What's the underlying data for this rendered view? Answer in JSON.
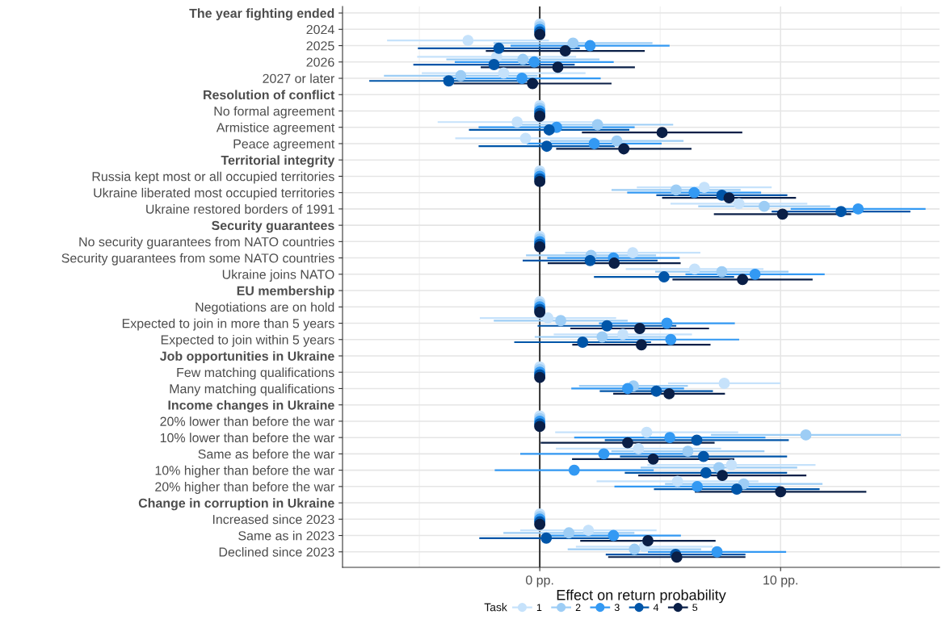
{
  "chart_data": {
    "type": "scatter",
    "orientation": "horizontal",
    "xlabel": "Effect on return probability",
    "legend_title": "Task",
    "legend": "bottom",
    "marker": "circle",
    "grid": true,
    "categories": [
      "The year fighting ended",
      "2024",
      "2025",
      "2026",
      "2027 or later",
      "Resolution of conflict",
      "No formal agreement",
      "Armistice agreement",
      "Peace agreement",
      "Territorial integrity",
      "Russia kept most or all occupied territories",
      "Ukraine liberated most occupied territories",
      "Ukraine restored borders of 1991",
      "Security guarantees",
      "No security guarantees from NATO countries",
      "Security guarantees from some NATO countries",
      "Ukraine joins NATO",
      "EU membership",
      "Negotiations are on hold",
      "Expected to join in more than 5 years",
      "Expected to join within 5 years",
      "Job opportunities in Ukraine",
      "Few matching qualifications",
      "Many matching qualifications",
      "Income changes in Ukraine",
      "20% lower than before the war",
      "10% lower than before the war",
      "Same as before the war",
      "10% higher than before the war",
      "20% higher than before the war",
      "Change in corruption in Ukraine",
      "Increased since 2023",
      "Same as in 2023",
      "Declined since 2023"
    ],
    "xlim": [
      -8.19,
      16.6
    ],
    "xticks": [
      {
        "value": 0,
        "label": "0 pp."
      },
      {
        "value": 10,
        "label": "10 pp."
      }
    ],
    "ref_lines": [
      {
        "axis": "x",
        "value": 0,
        "color": "#222222"
      }
    ],
    "series": [
      {
        "name": "1",
        "color": "#c6e2fb",
        "values": [
          null,
          0,
          -2.98,
          -1.79,
          -1.5,
          null,
          0,
          -0.94,
          -0.59,
          null,
          0,
          6.83,
          8.27,
          null,
          0,
          3.86,
          6.43,
          null,
          0,
          0.34,
          3.45,
          null,
          0,
          7.66,
          null,
          0,
          4.44,
          4.1,
          7.96,
          5.72,
          null,
          0,
          2.02,
          4.34
        ],
        "errors": [
          null,
          null,
          3.36,
          3.3,
          3.4,
          null,
          null,
          3.3,
          2.92,
          null,
          null,
          2.8,
          2.84,
          null,
          null,
          2.81,
          2.86,
          null,
          null,
          2.83,
          2.87,
          null,
          null,
          2.33,
          null,
          null,
          3.8,
          3.43,
          3.49,
          3.36,
          null,
          null,
          2.83,
          2.84
        ]
      },
      {
        "name": "2",
        "color": "#9dcdf5",
        "values": [
          null,
          0,
          1.38,
          -0.7,
          -3.28,
          null,
          0,
          2.4,
          3.2,
          null,
          0,
          5.66,
          9.32,
          null,
          0,
          2.13,
          7.56,
          null,
          0,
          0.87,
          2.59,
          null,
          0,
          3.89,
          null,
          0,
          11.05,
          6.15,
          7.44,
          8.47,
          null,
          0,
          1.21,
          3.93
        ],
        "errors": [
          null,
          null,
          3.3,
          3.18,
          3.19,
          null,
          null,
          3.14,
          2.77,
          null,
          null,
          2.68,
          2.74,
          null,
          null,
          2.7,
          2.77,
          null,
          null,
          2.78,
          2.8,
          null,
          null,
          2.26,
          null,
          null,
          3.94,
          3.18,
          3.25,
          3.27,
          null,
          null,
          2.72,
          2.77
        ]
      },
      {
        "name": "3",
        "color": "#3399f3",
        "values": [
          null,
          0,
          2.09,
          -0.23,
          -0.74,
          null,
          0,
          0.7,
          2.26,
          null,
          0,
          6.41,
          13.22,
          null,
          0,
          3.06,
          8.94,
          null,
          0,
          5.28,
          5.44,
          null,
          0,
          3.65,
          null,
          0,
          5.4,
          2.66,
          1.43,
          6.54,
          null,
          0,
          3.06,
          7.36
        ],
        "errors": [
          null,
          null,
          3.3,
          3.3,
          3.27,
          null,
          null,
          3.24,
          2.8,
          null,
          null,
          2.78,
          2.8,
          null,
          null,
          2.75,
          2.89,
          null,
          null,
          2.82,
          2.84,
          null,
          null,
          2.34,
          null,
          null,
          3.97,
          3.47,
          3.3,
          3.44,
          null,
          null,
          2.8,
          2.87
        ]
      },
      {
        "name": "4",
        "color": "#0055a8",
        "values": [
          null,
          0,
          -1.7,
          -1.9,
          -3.78,
          null,
          0,
          0.39,
          0.29,
          null,
          0,
          7.56,
          12.51,
          null,
          0,
          2.09,
          5.16,
          null,
          0,
          2.79,
          1.78,
          null,
          0,
          4.84,
          null,
          0,
          6.52,
          6.8,
          6.9,
          8.18,
          null,
          0,
          0.27,
          5.64
        ],
        "errors": [
          null,
          null,
          3.36,
          3.35,
          3.3,
          null,
          null,
          3.33,
          2.83,
          null,
          null,
          2.72,
          2.88,
          null,
          null,
          2.8,
          2.91,
          null,
          null,
          2.88,
          2.84,
          null,
          null,
          2.35,
          null,
          null,
          3.82,
          3.47,
          3.37,
          3.44,
          null,
          null,
          2.78,
          2.9
        ]
      },
      {
        "name": "5",
        "color": "#0a1f47",
        "values": [
          null,
          0,
          1.06,
          0.75,
          -0.3,
          null,
          0,
          5.08,
          3.49,
          null,
          0,
          7.86,
          10.08,
          null,
          0,
          3.09,
          8.42,
          null,
          0,
          4.15,
          4.22,
          null,
          0,
          5.37,
          null,
          0,
          3.65,
          4.71,
          7.58,
          10.0,
          null,
          0,
          4.49,
          5.69
        ],
        "errors": [
          null,
          null,
          3.3,
          3.2,
          3.28,
          null,
          null,
          3.33,
          2.81,
          null,
          null,
          2.78,
          2.85,
          null,
          null,
          2.76,
          2.91,
          null,
          null,
          2.88,
          2.87,
          null,
          null,
          2.32,
          null,
          null,
          3.61,
          3.37,
          3.49,
          3.56,
          null,
          null,
          2.81,
          2.85
        ]
      }
    ]
  }
}
